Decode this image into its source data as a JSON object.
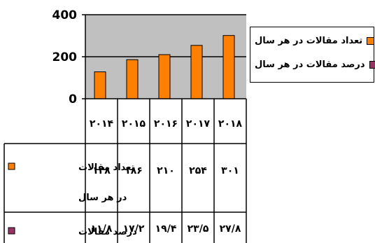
{
  "chart_data": {
    "type": "bar",
    "categories": [
      "۲۰۱۴",
      "۲۰۱۵",
      "۲۰۱۶",
      "۲۰۱۷",
      "۲۰۱۸"
    ],
    "series": [
      {
        "name": "تعداد مقالات در هر سال",
        "values": [
          128,
          186,
          210,
          254,
          301
        ],
        "color": "#FF7F00"
      },
      {
        "name": "درصد مقالات در هر سال",
        "values": [
          11.8,
          17.2,
          19.4,
          23.5,
          27.8
        ],
        "color": "#993366"
      }
    ],
    "yticks": [
      "0",
      "200",
      "400"
    ],
    "ylim": [
      0,
      400
    ],
    "grid": true,
    "legend_position": "right",
    "plot_background": "#C0C0C0",
    "data_table": {
      "row_labels": [
        {
          "lines": [
            "تعداد مقالات",
            "در هر سال"
          ],
          "swatch": "#FF7F00"
        },
        {
          "lines": [
            "درصد مقالات"
          ],
          "swatch": "#993366"
        }
      ],
      "rows": [
        [
          "۱۲۸",
          "۱۸۶",
          "۲۱۰",
          "۲۵۴",
          "۳۰۱"
        ],
        [
          "۱۱/۸",
          "۱۷/۲",
          "۱۹/۴",
          "۲۳/۵",
          "۲۷/۸"
        ]
      ]
    }
  }
}
